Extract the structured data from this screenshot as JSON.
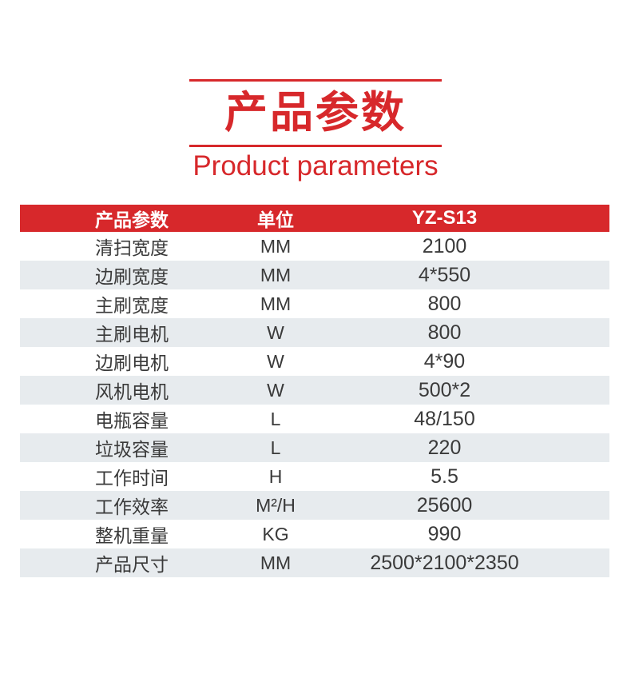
{
  "colors": {
    "accent_red": "#d7282b",
    "row_alt_gray": "#e7ebee",
    "body_text": "#3a3a3a",
    "header_text": "#ffffff"
  },
  "title": {
    "cn": "产品参数",
    "en": "Product parameters"
  },
  "table": {
    "columns": [
      {
        "label": "产品参数"
      },
      {
        "label": "单位"
      },
      {
        "label": "YZ-S13"
      }
    ],
    "rows": [
      {
        "name": "清扫宽度",
        "unit": "MM",
        "value": "2100"
      },
      {
        "name": "边刷宽度",
        "unit": "MM",
        "value": "4*550"
      },
      {
        "name": "主刷宽度",
        "unit": "MM",
        "value": "800"
      },
      {
        "name": "主刷电机",
        "unit": "W",
        "value": "800"
      },
      {
        "name": "边刷电机",
        "unit": "W",
        "value": "4*90"
      },
      {
        "name": "风机电机",
        "unit": "W",
        "value": "500*2"
      },
      {
        "name": "电瓶容量",
        "unit": "L",
        "value": "48/150"
      },
      {
        "name": "垃圾容量",
        "unit": "L",
        "value": "220"
      },
      {
        "name": "工作时间",
        "unit": "H",
        "value": "5.5"
      },
      {
        "name": "工作效率",
        "unit": "M²/H",
        "value": "25600"
      },
      {
        "name": "整机重量",
        "unit": "KG",
        "value": "990"
      },
      {
        "name": "产品尺寸",
        "unit": "MM",
        "value": "2500*2100*2350"
      }
    ]
  }
}
